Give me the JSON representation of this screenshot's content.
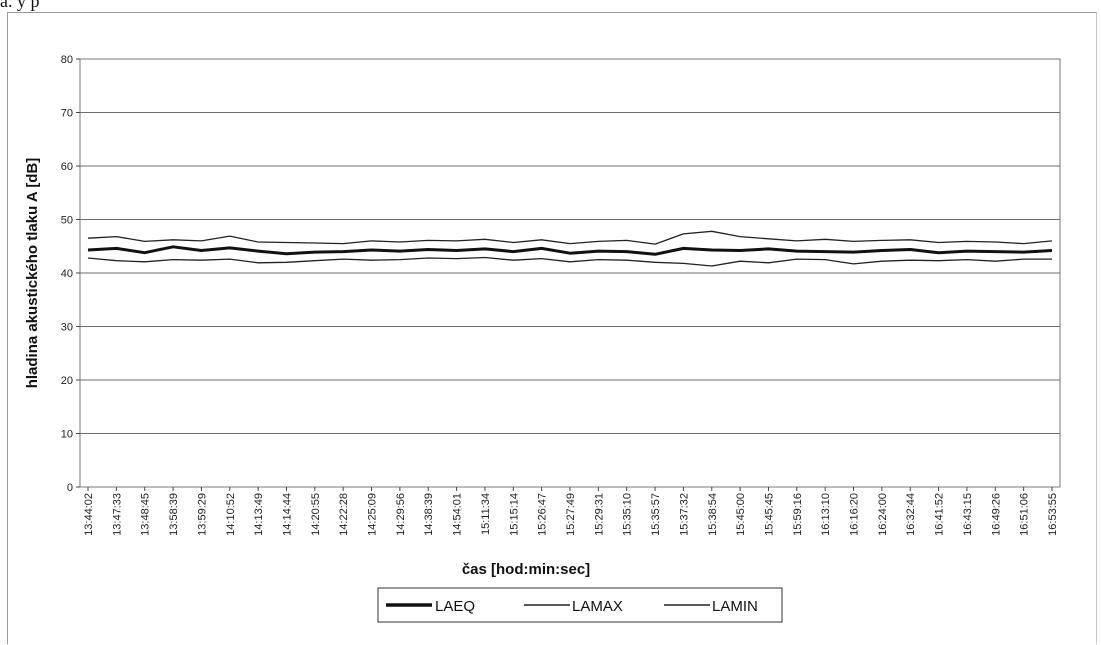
{
  "top_fragment": "a. y p",
  "chart_data": {
    "type": "line",
    "title": "",
    "xlabel": "čas [hod:min:sec]",
    "ylabel": "hladina akustického tlaku A [dB]",
    "ylim": [
      0,
      80
    ],
    "yticks": [
      0,
      10,
      20,
      30,
      40,
      50,
      60,
      70,
      80
    ],
    "grid": true,
    "legend_position": "bottom-center",
    "categories": [
      "13:44:02",
      "13:47:33",
      "13:48:45",
      "13:58:39",
      "13:59:29",
      "14:10:52",
      "14:13:49",
      "14:14:44",
      "14:20:55",
      "14:22:28",
      "14:25:09",
      "14:29:56",
      "14:38:39",
      "14:54:01",
      "15:11:34",
      "15:15:14",
      "15:26:47",
      "15:27:49",
      "15:29:31",
      "15:35:10",
      "15:35:57",
      "15:37:32",
      "15:38:54",
      "15:45:00",
      "15:45:45",
      "15:59:16",
      "16:13:10",
      "16:16:20",
      "16:24:00",
      "16:32:44",
      "16:41:52",
      "16:43:15",
      "16:49:26",
      "16:51:06",
      "16:53:55"
    ],
    "series": [
      {
        "name": "LAEQ",
        "color": "#111111",
        "width": "heavy",
        "values": [
          44.3,
          44.6,
          43.8,
          44.9,
          44.2,
          44.7,
          44.1,
          43.6,
          43.9,
          44.0,
          44.3,
          44.1,
          44.4,
          44.2,
          44.5,
          44.0,
          44.6,
          43.7,
          44.1,
          44.0,
          43.5,
          44.6,
          44.3,
          44.2,
          44.5,
          44.1,
          44.0,
          43.9,
          44.2,
          44.4,
          43.8,
          44.1,
          44.0,
          43.9,
          44.2
        ]
      },
      {
        "name": "LAMAX",
        "color": "#222222",
        "width": "thin",
        "values": [
          46.5,
          46.8,
          45.9,
          46.2,
          46.0,
          46.9,
          45.8,
          45.7,
          45.6,
          45.5,
          46.0,
          45.8,
          46.1,
          46.0,
          46.3,
          45.7,
          46.2,
          45.5,
          45.9,
          46.1,
          45.4,
          47.3,
          47.8,
          46.8,
          46.4,
          46.0,
          46.3,
          45.9,
          46.1,
          46.2,
          45.7,
          45.9,
          45.8,
          45.5,
          46.0
        ]
      },
      {
        "name": "LAMIN",
        "color": "#222222",
        "width": "thin",
        "values": [
          42.8,
          42.3,
          42.1,
          42.5,
          42.4,
          42.6,
          41.9,
          42.0,
          42.3,
          42.6,
          42.4,
          42.5,
          42.8,
          42.7,
          42.9,
          42.4,
          42.7,
          42.1,
          42.5,
          42.4,
          42.0,
          41.8,
          41.3,
          42.2,
          41.9,
          42.6,
          42.5,
          41.7,
          42.2,
          42.4,
          42.3,
          42.5,
          42.2,
          42.6,
          42.6
        ]
      }
    ]
  }
}
